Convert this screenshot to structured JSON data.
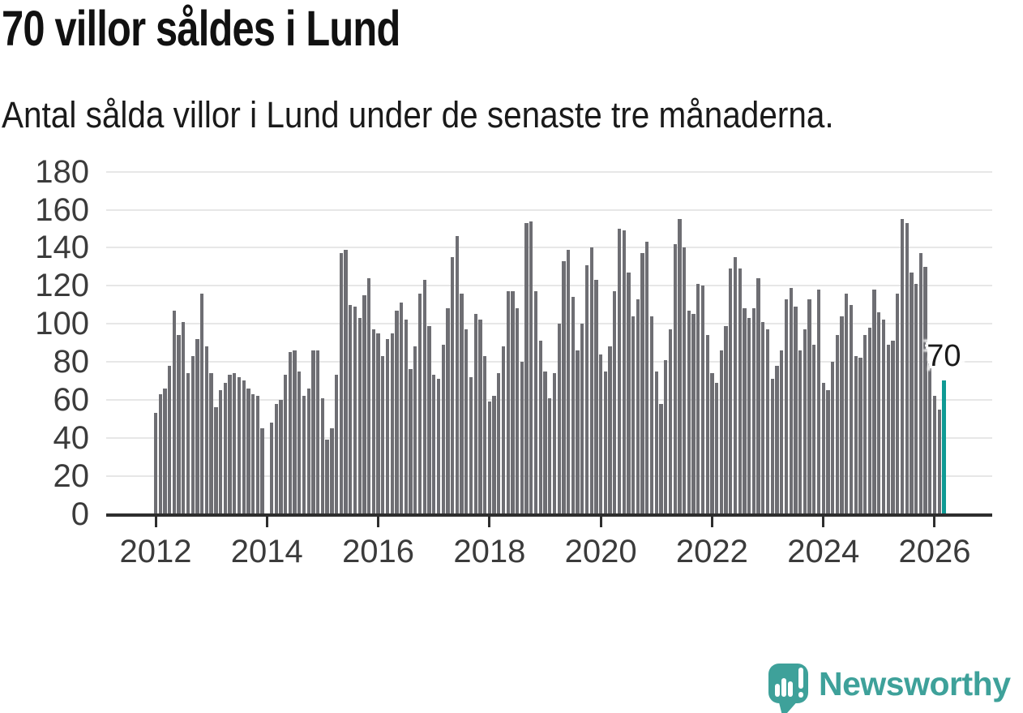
{
  "chart_data": {
    "type": "bar",
    "title": "70 villor såldes i Lund",
    "subtitle": "Antal sålda villor i Lund under de senaste tre månaderna.",
    "ylabel": "",
    "xlabel": "",
    "ylim": [
      0,
      180
    ],
    "y_ticks": [
      0,
      20,
      40,
      60,
      80,
      100,
      120,
      140,
      160,
      180
    ],
    "x_tick_years": [
      2012,
      2014,
      2016,
      2018,
      2020,
      2022,
      2024,
      2026
    ],
    "x_start_year": 2012,
    "frequency": "monthly",
    "grid": true,
    "values": [
      53,
      63,
      66,
      78,
      107,
      94,
      101,
      74,
      83,
      92,
      116,
      88,
      74,
      56,
      65,
      69,
      73,
      74,
      72,
      70,
      66,
      63,
      62,
      45,
      0,
      48,
      58,
      60,
      73,
      85,
      86,
      75,
      62,
      66,
      86,
      86,
      61,
      39,
      45,
      73,
      137,
      139,
      110,
      109,
      103,
      115,
      124,
      97,
      95,
      83,
      92,
      95,
      107,
      111,
      102,
      76,
      88,
      116,
      123,
      99,
      73,
      71,
      89,
      108,
      135,
      146,
      116,
      97,
      72,
      105,
      102,
      83,
      59,
      62,
      74,
      88,
      117,
      117,
      108,
      80,
      153,
      154,
      117,
      91,
      75,
      61,
      74,
      100,
      133,
      139,
      114,
      86,
      100,
      131,
      140,
      123,
      84,
      75,
      88,
      117,
      150,
      149,
      127,
      104,
      113,
      137,
      143,
      104,
      75,
      58,
      81,
      97,
      142,
      155,
      140,
      107,
      105,
      121,
      120,
      94,
      74,
      69,
      86,
      99,
      129,
      135,
      129,
      108,
      103,
      108,
      124,
      101,
      97,
      71,
      78,
      86,
      113,
      119,
      109,
      86,
      97,
      113,
      89,
      118,
      69,
      65,
      80,
      94,
      104,
      116,
      110,
      83,
      82,
      94,
      98,
      118,
      106,
      102,
      89,
      91,
      116,
      155,
      153,
      127,
      121,
      137,
      130,
      79,
      62,
      55,
      70
    ],
    "highlight_last": true,
    "annotation": {
      "text": "70",
      "value": 70
    },
    "colors": {
      "bar": "#6e6e73",
      "highlight": "#0f9a94",
      "gridline": "#e7e7e7",
      "axis": "#2e2e2e",
      "tick_label": "#3b3b3b",
      "text": "#1a1a1a"
    }
  },
  "footer": {
    "brand": "Newsworthy",
    "logo_color": "#3ea19a"
  }
}
